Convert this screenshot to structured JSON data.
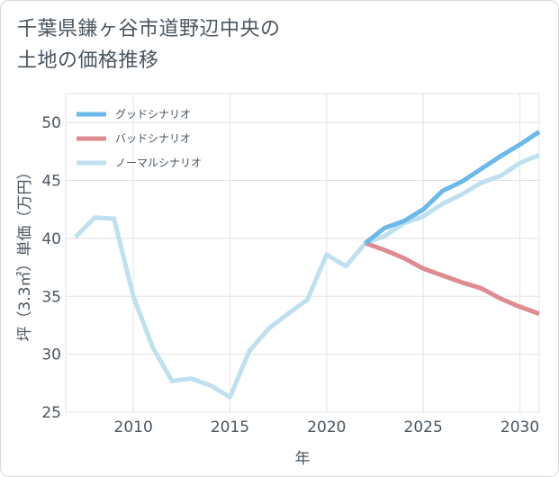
{
  "title_lines": [
    "千葉県鎌ヶ谷市道野辺中央の",
    "土地の価格推移"
  ],
  "chart_data": {
    "type": "line",
    "xlabel": "年",
    "ylabel": "坪（3.3㎡）単価（万円）",
    "xlim": [
      2006.5,
      2031
    ],
    "ylim": [
      25,
      52.5
    ],
    "xticks": [
      2010,
      2015,
      2020,
      2025,
      2030
    ],
    "yticks": [
      25,
      30,
      35,
      40,
      45,
      50
    ],
    "grid": true,
    "legend_position": "top-left",
    "series": [
      {
        "name": "グッドシナリオ",
        "color": "#6bb8ea",
        "x": [
          2022,
          2023,
          2024,
          2025,
          2026,
          2027,
          2028,
          2029,
          2030,
          2031
        ],
        "y": [
          39.6,
          40.9,
          41.5,
          42.5,
          44.1,
          44.9,
          46.0,
          47.1,
          48.1,
          49.2
        ]
      },
      {
        "name": "バッドシナリオ",
        "color": "#df8c91",
        "x": [
          2022,
          2023,
          2024,
          2025,
          2026,
          2027,
          2028,
          2029,
          2030,
          2031
        ],
        "y": [
          39.6,
          39.0,
          38.3,
          37.4,
          36.8,
          36.2,
          35.7,
          34.8,
          34.1,
          33.5
        ]
      },
      {
        "name": "ノーマルシナリオ",
        "color": "#bfe0ef",
        "x": [
          2007,
          2008,
          2009,
          2010,
          2011,
          2012,
          2013,
          2014,
          2015,
          2016,
          2017,
          2018,
          2019,
          2020,
          2021,
          2022,
          2023,
          2024,
          2025,
          2026,
          2027,
          2028,
          2029,
          2030,
          2031
        ],
        "y": [
          40.1,
          41.8,
          41.7,
          35.0,
          30.6,
          27.7,
          27.9,
          27.3,
          26.3,
          30.3,
          32.2,
          33.5,
          34.7,
          38.6,
          37.6,
          39.6,
          40.2,
          41.3,
          41.9,
          43.0,
          43.8,
          44.8,
          45.4,
          46.5,
          47.2
        ]
      }
    ]
  }
}
